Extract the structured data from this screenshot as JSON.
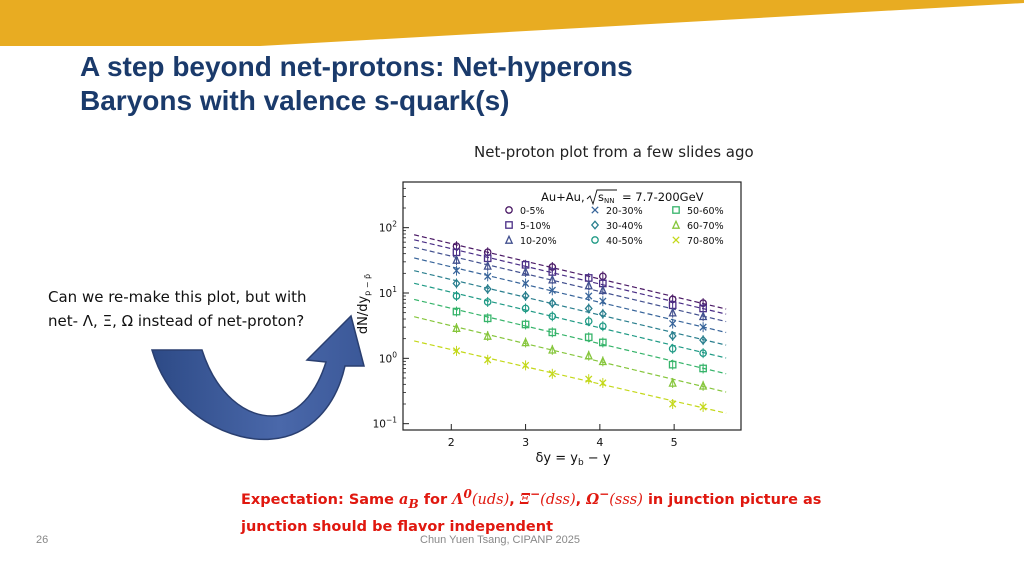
{
  "slide": {
    "title_line1": "A step beyond net-protons: Net-hyperons",
    "title_line2": "Baryons with valence s-quark(s)",
    "caption": "Net-proton plot from a few slides ago",
    "question_line1": "Can we re-make this plot, but with",
    "question_line2": "net- Λ, Ξ, Ω instead of net-proton?",
    "expectation": {
      "prefix": "Expectation: Same ",
      "aB": "a",
      "aB_sub": "B",
      "for": " for ",
      "lambda": "Λ",
      "lambda_sup": "0",
      "lambda_q": "(uds)",
      "sep1": ", ",
      "xi": "Ξ",
      "xi_sup": "−",
      "xi_q": "(dss)",
      "sep2": ", ",
      "omega": "Ω",
      "omega_sup": "−",
      "omega_q": "(sss)",
      "tail": " in junction picture as",
      "line2": "junction should be flavor independent"
    },
    "page_number": "26",
    "footer": "Chun Yuen Tsang, CIPANP 2025",
    "colors": {
      "banner": "#e8ac22",
      "title": "#1a3a6b",
      "emphasis": "#e0180f",
      "arrow": "#3e5c9c"
    }
  },
  "chart_data": {
    "type": "scatter",
    "scale_y": "log",
    "title_line1": "Au+Au,",
    "title_sqrt": "s",
    "title_sub": "NN",
    "title_value": "= 7.7-200GeV",
    "xlabel": "δy = y",
    "xlabel_sub": "b",
    "xlabel_tail": " − y",
    "ylabel": "dN/dy",
    "ylabel_sub": "p − p̄",
    "xlim": [
      1.35,
      5.9
    ],
    "ylim": [
      0.08,
      500
    ],
    "x_ticks": [
      {
        "value": 2,
        "label": "2"
      },
      {
        "value": 3,
        "label": "3"
      },
      {
        "value": 4,
        "label": "4"
      },
      {
        "value": 5,
        "label": "5"
      }
    ],
    "y_ticks": [
      {
        "value": 100,
        "base": "10",
        "exp": "2"
      },
      {
        "value": 10,
        "base": "10",
        "exp": "1"
      },
      {
        "value": 1,
        "base": "10",
        "exp": "0"
      },
      {
        "value": 0.1,
        "base": "10",
        "exp": "−1"
      }
    ],
    "x": [
      2.07,
      2.49,
      3.0,
      3.36,
      3.85,
      4.04,
      4.6,
      4.98,
      5.39
    ],
    "fit_x": [
      1.5,
      5.7
    ],
    "series": [
      {
        "name": "0-5%",
        "color": "#4b1a66",
        "marker": "circle",
        "values": [
          52,
          42,
          null,
          25,
          null,
          18,
          null,
          8,
          7
        ]
      },
      {
        "name": "5-10%",
        "color": "#4a2e86",
        "marker": "square",
        "values": [
          42,
          34,
          27,
          21,
          17,
          14,
          null,
          6.5,
          5.8
        ]
      },
      {
        "name": "10-20%",
        "color": "#42508f",
        "marker": "triangle",
        "values": [
          32,
          26,
          21,
          16,
          13,
          11,
          null,
          5,
          4.4
        ]
      },
      {
        "name": "20-30%",
        "color": "#37649a",
        "marker": "x",
        "values": [
          22,
          18,
          14,
          11,
          9,
          7.5,
          null,
          3.4,
          3.0
        ]
      },
      {
        "name": "30-40%",
        "color": "#2a7f8e",
        "marker": "diamond",
        "values": [
          14,
          11.5,
          9,
          7,
          5.8,
          4.8,
          null,
          2.2,
          1.9
        ]
      },
      {
        "name": "40-50%",
        "color": "#1f9a85",
        "marker": "circle",
        "values": [
          9,
          7.3,
          5.8,
          4.4,
          3.7,
          3.1,
          null,
          1.4,
          1.2
        ]
      },
      {
        "name": "50-60%",
        "color": "#36b46a",
        "marker": "square",
        "values": [
          5.2,
          4.1,
          3.3,
          2.5,
          2.1,
          1.75,
          null,
          0.8,
          0.7
        ]
      },
      {
        "name": "60-70%",
        "color": "#86c63c",
        "marker": "triangle",
        "values": [
          2.9,
          2.2,
          1.75,
          1.35,
          1.1,
          0.9,
          null,
          0.42,
          0.38
        ]
      },
      {
        "name": "70-80%",
        "color": "#c4d81a",
        "marker": "x",
        "values": [
          1.3,
          0.95,
          0.78,
          0.58,
          0.48,
          0.42,
          null,
          0.2,
          0.18
        ]
      }
    ]
  }
}
